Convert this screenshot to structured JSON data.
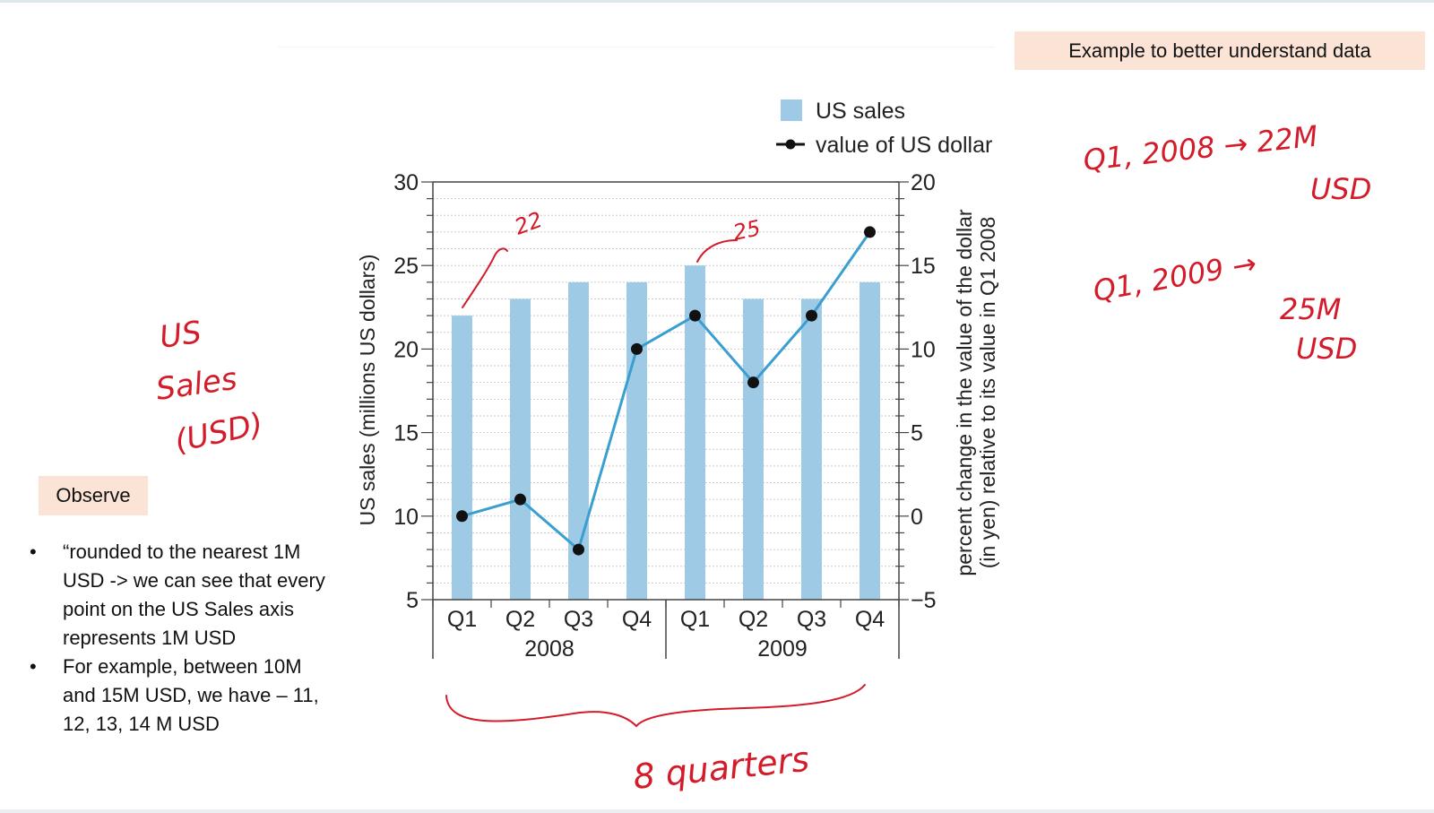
{
  "slide": {
    "example_label": "Example to better understand data",
    "observe_label": "Observe",
    "notes": [
      "“rounded to the nearest 1M USD -> we can see that every point on the US Sales axis represents 1M USD",
      "For example, between 10M and 15M USD, we have – 11, 12, 13, 14 M USD"
    ]
  },
  "annotations": {
    "left_note": [
      "US",
      "Sales",
      "(USD)"
    ],
    "q1_2008_note": [
      "Q1, 2008 → 22M",
      "USD"
    ],
    "q1_2009_note": [
      "Q1, 2009 →",
      "25M",
      "USD"
    ],
    "bar_label_1": "22",
    "bar_label_2": "25",
    "brace_label": "8 quarters",
    "ink_color": "#d31b2a"
  },
  "chart_data": {
    "type": "bar",
    "categories": [
      "Q1",
      "Q2",
      "Q3",
      "Q4",
      "Q1",
      "Q2",
      "Q3",
      "Q4"
    ],
    "groups": [
      "2008",
      "2009"
    ],
    "ylabel": "US sales (millions US dollars)",
    "y2label": [
      "percent change in the value of the dollar",
      "(in yen) relative to its value in Q1 2008"
    ],
    "ylim": [
      5,
      30
    ],
    "y2lim": [
      -5,
      20
    ],
    "yticks": [
      5,
      10,
      15,
      20,
      25,
      30
    ],
    "y2ticks": [
      -5,
      0,
      5,
      10,
      15,
      20
    ],
    "series": [
      {
        "name": "US sales",
        "type": "bar",
        "axis": "left",
        "color": "#9ecae6",
        "values": [
          22,
          23,
          24,
          24,
          25,
          23,
          23,
          24
        ]
      },
      {
        "name": "value of US dollar",
        "type": "line",
        "axis": "right",
        "color": "#3a9fd0",
        "values": [
          0,
          1,
          -2,
          10,
          12,
          8,
          12,
          17
        ]
      }
    ],
    "legend": "top-right",
    "grid": true
  }
}
